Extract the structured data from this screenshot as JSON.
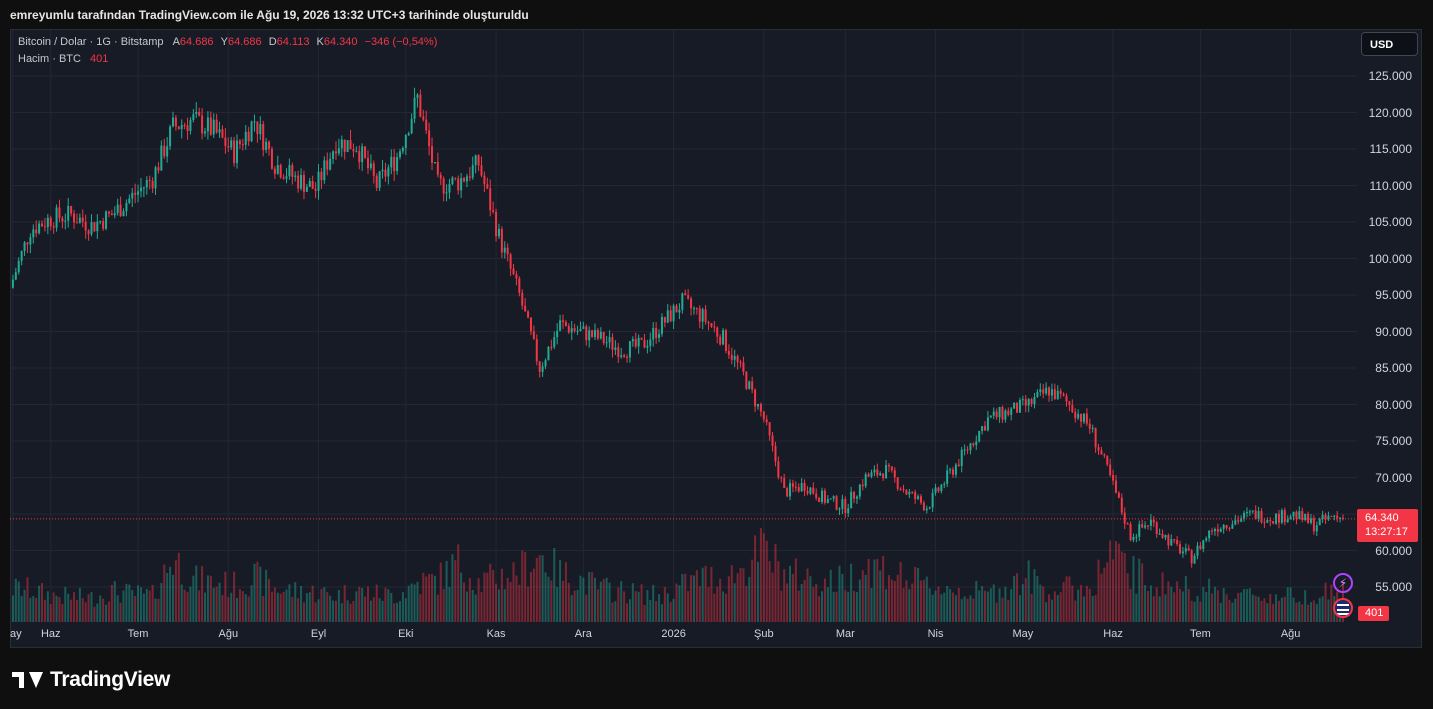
{
  "caption": "emreyumlu tarafından TradingView.com ile Ağu 19, 2026 13:32 UTC+3 tarihinde oluşturuldu",
  "legend": {
    "symbol": "Bitcoin / Dolar · 1G · Bitstamp",
    "open_label": "A",
    "open_value": "64.686",
    "high_label": "Y",
    "high_value": "64.686",
    "low_label": "D",
    "low_value": "64.113",
    "close_label": "K",
    "close_value": "64.340",
    "change": "−346 (−0,54%)",
    "volume_label": "Hacim · BTC",
    "volume_value": "401"
  },
  "currency_button": "USD",
  "last_price": {
    "price": "64.340",
    "countdown": "13:27:17",
    "volume": "401"
  },
  "brand": "TradingView",
  "colors": {
    "up": "#22ab94",
    "down": "#f23645",
    "background": "#171b26",
    "grid": "#232734"
  },
  "icons": [
    "flash-icon",
    "us-flag-icon",
    "tradingview-logo-icon"
  ],
  "chart_data": {
    "type": "candlestick",
    "title": "Bitcoin / Dolar · 1G · Bitstamp",
    "ylim": [
      52000,
      129000
    ],
    "y_ticks": [
      "125.000",
      "120.000",
      "115.000",
      "110.000",
      "105.000",
      "100.000",
      "95.000",
      "90.000",
      "85.000",
      "80.000",
      "75.000",
      "70.000",
      "65.000",
      "60.000",
      "55.000"
    ],
    "y_tick_values": [
      125000,
      120000,
      115000,
      110000,
      105000,
      100000,
      95000,
      90000,
      85000,
      80000,
      75000,
      70000,
      65000,
      60000,
      55000
    ],
    "x_ticks": [
      "ay",
      "Haz",
      "Tem",
      "Ağu",
      "Eyl",
      "Eki",
      "Kas",
      "Ara",
      "2026",
      "Şub",
      "Mar",
      "Nis",
      "May",
      "Haz",
      "Tem",
      "Ağu"
    ],
    "x_range": [
      "2025-05-18",
      "2026-08-19"
    ],
    "x_tick_dates": [
      "2025-05-19",
      "2025-06-01",
      "2025-07-01",
      "2025-08-01",
      "2025-09-01",
      "2025-10-01",
      "2025-11-01",
      "2025-12-01",
      "2026-01-01",
      "2026-02-01",
      "2026-03-01",
      "2026-04-01",
      "2026-05-01",
      "2026-06-01",
      "2026-07-01",
      "2026-08-01"
    ],
    "series": [
      {
        "dates": [
          "2025-05-18",
          "2025-05-25",
          "2025-06-01",
          "2025-06-08",
          "2025-06-15",
          "2025-06-22",
          "2025-06-29",
          "2025-07-06",
          "2025-07-13",
          "2025-07-20",
          "2025-07-27",
          "2025-08-03",
          "2025-08-10",
          "2025-08-17",
          "2025-08-24",
          "2025-08-31",
          "2025-09-07",
          "2025-09-14",
          "2025-09-21",
          "2025-09-28",
          "2025-10-05",
          "2025-10-12",
          "2025-10-19",
          "2025-10-26",
          "2025-11-02",
          "2025-11-09",
          "2025-11-16",
          "2025-11-23",
          "2025-11-30",
          "2025-12-07",
          "2025-12-14",
          "2025-12-21",
          "2025-12-28",
          "2026-01-04",
          "2026-01-11",
          "2026-01-18",
          "2026-01-25",
          "2026-02-01",
          "2026-02-08",
          "2026-02-15",
          "2026-02-22",
          "2026-03-01",
          "2026-03-08",
          "2026-03-15",
          "2026-03-22",
          "2026-03-29",
          "2026-04-05",
          "2026-04-12",
          "2026-04-19",
          "2026-04-26",
          "2026-05-03",
          "2026-05-10",
          "2026-05-17",
          "2026-05-24",
          "2026-05-31",
          "2026-06-07",
          "2026-06-14",
          "2026-06-21",
          "2026-06-28",
          "2026-07-05",
          "2026-07-12",
          "2026-07-19",
          "2026-07-26",
          "2026-08-02",
          "2026-08-09",
          "2026-08-16",
          "2026-08-19"
        ],
        "close": [
          96000,
          104000,
          105500,
          106000,
          104500,
          106000,
          108500,
          111000,
          118000,
          119000,
          117500,
          114500,
          119000,
          113000,
          111000,
          109500,
          116000,
          115500,
          110000,
          114000,
          122000,
          110000,
          110500,
          113000,
          103000,
          95000,
          85000,
          91000,
          90000,
          89000,
          87500,
          88000,
          91000,
          94000,
          92000,
          89000,
          84000,
          78000,
          68000,
          69000,
          67000,
          66000,
          70000,
          71000,
          68000,
          66000,
          70000,
          74000,
          78000,
          79000,
          80000,
          82000,
          80000,
          77000,
          70000,
          62000,
          64000,
          61000,
          59000,
          63000,
          64000,
          65000,
          64500,
          65000,
          63500,
          64700,
          64340
        ],
        "volume": [
          120,
          115,
          95,
          90,
          85,
          110,
          100,
          95,
          230,
          150,
          140,
          130,
          160,
          120,
          110,
          105,
          95,
          110,
          100,
          95,
          140,
          150,
          210,
          140,
          160,
          180,
          240,
          170,
          150,
          120,
          110,
          100,
          95,
          130,
          160,
          150,
          190,
          260,
          170,
          160,
          140,
          150,
          200,
          190,
          150,
          130,
          120,
          110,
          100,
          130,
          160,
          110,
          120,
          120,
          240,
          180,
          140,
          130,
          120,
          110,
          100,
          95,
          90,
          95,
          100,
          110,
          401
        ]
      }
    ]
  }
}
